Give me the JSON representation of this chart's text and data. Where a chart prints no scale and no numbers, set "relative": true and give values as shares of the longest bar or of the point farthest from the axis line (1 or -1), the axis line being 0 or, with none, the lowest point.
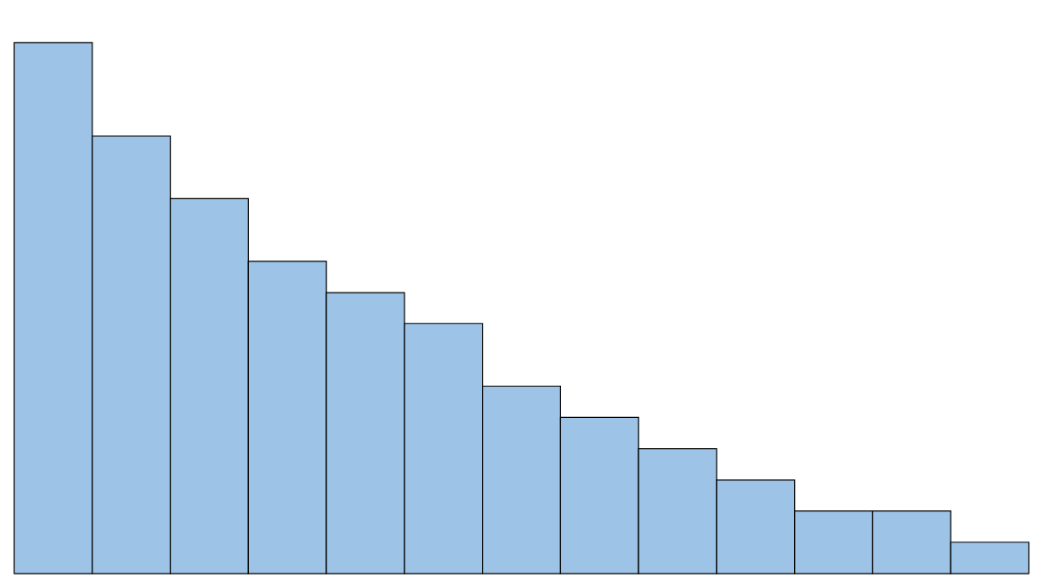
{
  "chart_data": {
    "type": "bar",
    "relative": true,
    "categories": [
      null,
      null,
      null,
      null,
      null,
      null,
      null,
      null,
      null,
      null,
      null,
      null,
      null
    ],
    "values": [
      1,
      0.824,
      0.706,
      0.588,
      0.529,
      0.471,
      0.353,
      0.294,
      0.235,
      0.176,
      0.118,
      0.118,
      0.059
    ],
    "color": "#9dc3e6"
  }
}
